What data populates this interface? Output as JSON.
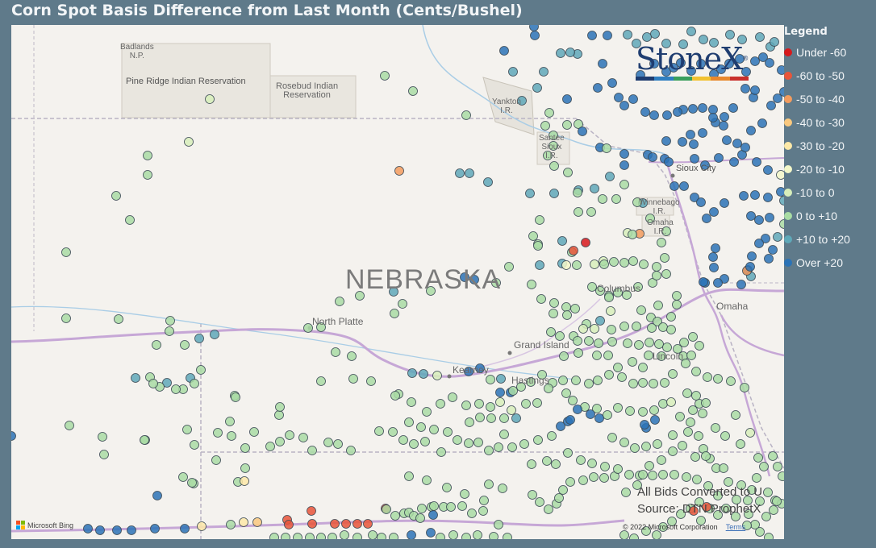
{
  "title": "Corn Spot Basis Difference from Last Month (Cents/Bushel)",
  "logo": {
    "text": "StoneX",
    "trademark": "®",
    "stripe_colors": [
      "#1f3d70",
      "#2f7fc1",
      "#3a9f5b",
      "#f2c230",
      "#e8882c",
      "#c9302c"
    ]
  },
  "legend": {
    "title": "Legend",
    "items": [
      {
        "label": "Under -60",
        "color": "#d7191c"
      },
      {
        "label": "-60 to -50",
        "color": "#e8553a"
      },
      {
        "label": "-50 to -40",
        "color": "#f39c5e"
      },
      {
        "label": "-40 to -30",
        "color": "#f9c87e"
      },
      {
        "label": "-30 to -20",
        "color": "#fde9a8"
      },
      {
        "label": "-20 to -10",
        "color": "#f3f7c9"
      },
      {
        "label": "-10 to 0",
        "color": "#d7eebb"
      },
      {
        "label": "0 to +10",
        "color": "#a9dca4"
      },
      {
        "label": "+10 to +20",
        "color": "#5fa8b8"
      },
      {
        "label": "Over +20",
        "color": "#2b73b6"
      }
    ]
  },
  "map": {
    "state_label": "NEBRASKA",
    "places": {
      "badlands": "Badlands\nN.P.",
      "pine_ridge": "Pine Ridge Indian Reservation",
      "rosebud": "Rosebud Indian\nReservation",
      "yankton": "Yankton\nI.R.",
      "santee": "Santee\nSioux\nI.R.",
      "sioux_city": "Sioux City",
      "winnebago": "Winnebago\nI.R.",
      "omaha_ir": "Omaha\nI.R.",
      "columbus": "Columbus",
      "omaha": "Omaha",
      "north_platte": "North Platte",
      "grand_island": "Grand Island",
      "lincoln": "Lincoln",
      "kearney": "Kearney",
      "hastings": "Hastings"
    },
    "note_lines": [
      "All Bids Converted to U",
      "Source: DTN ProphetX"
    ],
    "copyright": "© 2022 Microsoft Corporation",
    "terms": "Terms",
    "bing": "Microsoft Bing"
  }
}
